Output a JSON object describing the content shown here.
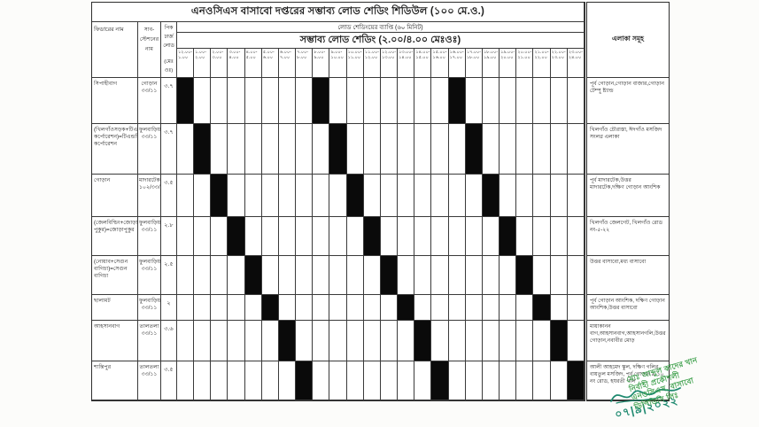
{
  "document": {
    "title": "এনওসিএস বাসাবো দপ্তরের সম্ভাব্য লোড শেডিং শিডিউল (১০০ মে.ও.)",
    "duration_note": "লোড শেডিংয়ের ব্যাপ্তি (৬০ মিনিট)",
    "shedding_header": "সম্ভাব্য লোড শেডিং (২.০০/৪.০০ মেঃওঃ)",
    "columns": {
      "feeder": "ফিডারের নাম",
      "substation": "সাব- স্টেশনের নাম",
      "load_label": "পিক ঢার্জ লোড",
      "load_unit": "(মেঃ ওঃ)",
      "areas": "এলাকা সমূহ"
    },
    "time_slots": [
      {
        "from": "১২.০০",
        "to": "১.০০"
      },
      {
        "from": "১.০০",
        "to": "২.০০"
      },
      {
        "from": "২.০০",
        "to": "৩.০০"
      },
      {
        "from": "৩.০০",
        "to": "৪.০০"
      },
      {
        "from": "৪.০০",
        "to": "৫.০০"
      },
      {
        "from": "৫.০০",
        "to": "৬.০০"
      },
      {
        "from": "৬.০০",
        "to": "৭.০০"
      },
      {
        "from": "৭.০০",
        "to": "৮.০০"
      },
      {
        "from": "৮.০০",
        "to": "৯.০০"
      },
      {
        "from": "৯.০০",
        "to": "১০.০০"
      },
      {
        "from": "১০.০০",
        "to": "১১.০০"
      },
      {
        "from": "১১.০০",
        "to": "১২.০০"
      },
      {
        "from": "১২.০০",
        "to": "১৩.০০"
      },
      {
        "from": "১৩.০০",
        "to": "১৪.০০"
      },
      {
        "from": "১৪.০০",
        "to": "১৫.০০"
      },
      {
        "from": "১৫.০০",
        "to": "১৬.০০"
      },
      {
        "from": "১৬.০০",
        "to": "১৭.০০"
      },
      {
        "from": "১৭.০০",
        "to": "১৮.০০"
      },
      {
        "from": "১৮.০০",
        "to": "১৯.০০"
      },
      {
        "from": "১৯.০০",
        "to": "২০.০০"
      },
      {
        "from": "২০.০০",
        "to": "২১.০০"
      },
      {
        "from": "২১.০০",
        "to": "২২.০০"
      },
      {
        "from": "২২.০০",
        "to": "২৩.০০"
      },
      {
        "from": "২৩.০০",
        "to": "২৪.০০"
      }
    ],
    "rows": [
      {
        "feeder": "সিপাহীবাগ",
        "substation": "গোড়ান ৩৩/১১",
        "load": "৩.৭",
        "shed_slots": [
          1,
          9,
          17
        ],
        "area": "পূর্ব গোড়ান,গোড়ান বাজার,গোড়ান টেম্পু ষ্ট্যান্ড"
      },
      {
        "feeder": "(খিলগাঁওসড়ক+টিএন্ডটি কর্পোরেশন)=টিএন্ডটি কর্পোরেশন",
        "substation": "ফুলবাড়িয়া ৩৩/১১",
        "load": "৩.৭",
        "shed_slots": [
          2,
          10,
          18
        ],
        "area": "খিলগাঁও চৌরাস্তা, ঈদগাঁও মসজিদ সংলগ্ন এলাকা"
      },
      {
        "feeder": "গোড়ান",
        "substation": "মাদারটেক ১০২/৩৩/১১",
        "load": "৩.৫",
        "shed_slots": [
          3,
          11,
          19
        ],
        "area": "পূর্ব মাদারটেক,উত্তর মাদারটেক,দক্ষিণ গোড়ান আংশিক"
      },
      {
        "feeder": "(জেলবিল্ডিং+জোড়া পুকুর)=জোড়াপুকুর",
        "substation": "ফুলবাড়িয়া ৩৩/১১",
        "load": "২.৮",
        "shed_slots": [
          4,
          12,
          20
        ],
        "area": "খিলগাঁও জেলগেট, খিলগাঁও রোড নং-৫-২২"
      },
      {
        "feeder": "(নোয়াব+সেগুন বাগিচা)=সেগুন বাগিচা",
        "substation": "ফুলবাড়িয়া ৩৩/১১",
        "load": "২.৫",
        "shed_slots": [
          5,
          13,
          21
        ],
        "area": "উত্তর বাসাবো,মধ্য বাসাবো"
      },
      {
        "feeder": "ছালামট",
        "substation": "ফুলবাড়িয়া ৩৩/১১",
        "load": "২",
        "shed_slots": [
          6,
          14,
          22
        ],
        "area": "পূর্ব গোড়ান আংশিক, দক্ষিণ গোড়ান আংশিক,উত্তর বাসাবো"
      },
      {
        "feeder": "আহসানবাগ",
        "substation": "তালতলা ৩৩/১১",
        "load": "৩.৬",
        "shed_slots": [
          7,
          15,
          23
        ],
        "area": "মায়াকানন বাগ,আহসানবাগ,আহসানগলি,উত্তর গোড়ান,নবাবীর মোড়"
      },
      {
        "feeder": "শান্তিপুর",
        "substation": "তালতলা ৩৩/১১",
        "load": "৩.৫",
        "shed_slots": [
          8,
          16,
          24
        ],
        "area": "আলী আহমেদ স্কুল, দক্ষিণ গলির, বায়তুল মসজিদ, পূর্ব গোড়ান ৯-১০ নং রোড, হযরতী গলি"
      }
    ]
  },
  "signature": {
    "date": "০৭|৯|২০২২",
    "stamp_lines": [
      "মোঃ আব্দুল কাদের খান",
      "নির্বাহী প্রকৌশলী",
      "এনওসিএস, বাসাবো",
      "ডিপিডিসি লিঃ"
    ]
  },
  "colors": {
    "shed_cell": "#0a0a0a",
    "stamp_green": "#3da04b",
    "signature_teal": "#1f8a70",
    "paper": "#fcfcfa"
  }
}
